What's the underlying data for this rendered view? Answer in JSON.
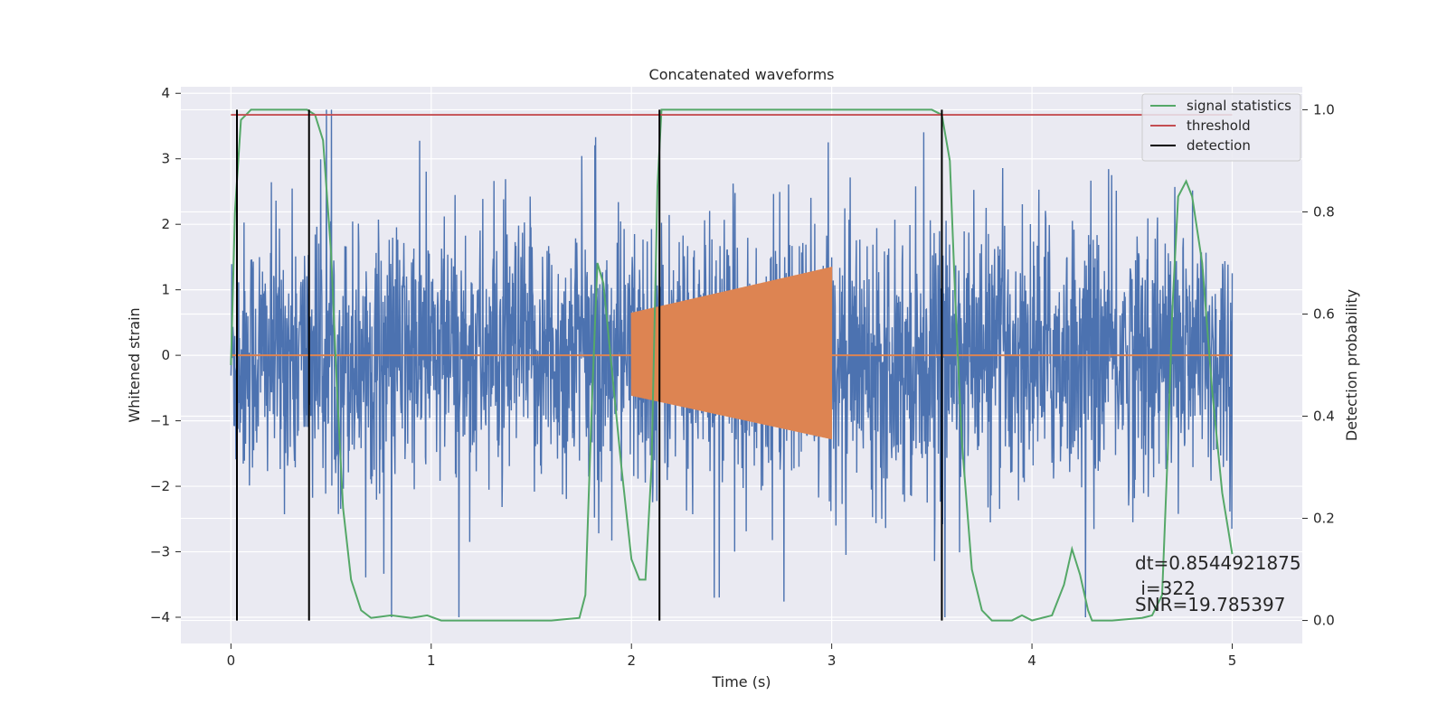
{
  "chart_data": {
    "type": "line",
    "title": "Concatenated waveforms",
    "xlabel": "Time (s)",
    "ylabel": "Whitened strain",
    "y2label": "Detection probability",
    "xlim": [
      -0.25,
      5.35
    ],
    "ylim": [
      -4.4,
      4.1
    ],
    "y2lim": [
      -0.045,
      1.045
    ],
    "xticks": [
      0,
      1,
      2,
      3,
      4,
      5
    ],
    "yticks": [
      -4,
      -3,
      -2,
      -1,
      0,
      1,
      2,
      3,
      4
    ],
    "y2ticks": [
      0.0,
      0.2,
      0.4,
      0.6,
      0.8,
      1.0
    ],
    "grid": true,
    "legend_position": "top-right",
    "colors": {
      "strain": "#4c72b0",
      "waveform": "#dd8452",
      "signal_statistics": "#55a868",
      "threshold": "#c44e52",
      "detection": "#000000",
      "background": "#eaeaf2",
      "grid": "#ffffff"
    },
    "strain": {
      "x_range": [
        0,
        5
      ],
      "typical_amplitude": 1.0,
      "peak_min": -4.0,
      "peak_max": 3.75
    },
    "waveform": {
      "x_range": [
        2,
        3
      ],
      "amplitude_start": 0.65,
      "amplitude_end": 1.35
    },
    "series": [
      {
        "name": "signal statistics",
        "axis": "right",
        "x": [
          0.0,
          0.02,
          0.05,
          0.1,
          0.2,
          0.3,
          0.38,
          0.42,
          0.46,
          0.5,
          0.53,
          0.56,
          0.6,
          0.65,
          0.7,
          0.8,
          0.9,
          0.98,
          1.05,
          1.2,
          1.4,
          1.6,
          1.74,
          1.77,
          1.8,
          1.83,
          1.86,
          1.9,
          1.95,
          2.0,
          2.04,
          2.07,
          2.1,
          2.13,
          2.15,
          2.2,
          2.3,
          2.6,
          3.0,
          3.4,
          3.5,
          3.55,
          3.59,
          3.62,
          3.65,
          3.7,
          3.75,
          3.8,
          3.9,
          3.95,
          4.0,
          4.1,
          4.16,
          4.2,
          4.24,
          4.28,
          4.3,
          4.35,
          4.4,
          4.55,
          4.6,
          4.65,
          4.68,
          4.7,
          4.73,
          4.77,
          4.8,
          4.85,
          4.9,
          4.95,
          5.0
        ],
        "values": [
          0.5,
          0.8,
          0.98,
          1.0,
          1.0,
          1.0,
          1.0,
          0.99,
          0.94,
          0.72,
          0.45,
          0.22,
          0.08,
          0.02,
          0.005,
          0.01,
          0.005,
          0.01,
          0.0,
          0.0,
          0.0,
          0.0,
          0.005,
          0.05,
          0.4,
          0.7,
          0.66,
          0.5,
          0.3,
          0.12,
          0.08,
          0.08,
          0.3,
          0.85,
          1.0,
          1.0,
          1.0,
          1.0,
          1.0,
          1.0,
          1.0,
          0.99,
          0.9,
          0.6,
          0.35,
          0.1,
          0.02,
          0.0,
          0.0,
          0.01,
          0.0,
          0.01,
          0.07,
          0.14,
          0.09,
          0.02,
          0.0,
          0.0,
          0.0,
          0.005,
          0.01,
          0.05,
          0.35,
          0.6,
          0.83,
          0.86,
          0.83,
          0.7,
          0.45,
          0.25,
          0.13
        ]
      },
      {
        "name": "threshold",
        "axis": "right",
        "x": [
          0.0,
          5.0
        ],
        "values": [
          0.99,
          0.99
        ]
      },
      {
        "name": "detection",
        "axis": "right",
        "x": [
          0.03,
          0.39,
          2.14,
          3.55
        ],
        "values": [
          1.0,
          1.0,
          1.0,
          1.0
        ]
      }
    ],
    "annotations": [
      "dt=0.8544921875",
      " i=322",
      "SNR=19.785397"
    ]
  }
}
